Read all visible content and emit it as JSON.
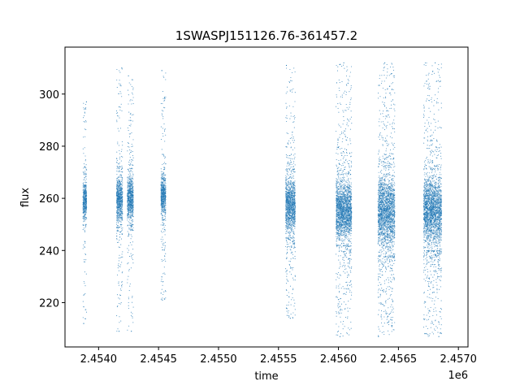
{
  "chart_data": {
    "type": "scatter",
    "title": "1SWASPJ151126.76-361457.2",
    "xlabel": "time",
    "ylabel": "flux",
    "x_offset_label": "1e6",
    "xlim": [
      2453720,
      2457080
    ],
    "ylim": [
      203,
      318
    ],
    "x_ticks": [
      2.454,
      2.4545,
      2.455,
      2.4555,
      2.456,
      2.4565,
      2.457
    ],
    "x_tick_labels": [
      "2.4540",
      "2.4545",
      "2.4550",
      "2.4555",
      "2.4560",
      "2.4565",
      "2.4570"
    ],
    "y_ticks": [
      220,
      240,
      260,
      280,
      300
    ],
    "y_tick_labels": [
      "220",
      "240",
      "260",
      "280",
      "300"
    ],
    "grid": false,
    "marker_color": "#1f77b4",
    "series": [
      {
        "name": "",
        "segments": [
          {
            "x_range": [
              2453870,
              2453900
            ],
            "y_center": 260,
            "y_core": [
              250,
              268
            ],
            "y_extent": [
              212,
              297
            ]
          },
          {
            "x_range": [
              2454150,
              2454200
            ],
            "y_center": 259,
            "y_core": [
              249,
              270
            ],
            "y_extent": [
              209,
              310
            ]
          },
          {
            "x_range": [
              2454240,
              2454290
            ],
            "y_center": 260,
            "y_core": [
              250,
              270
            ],
            "y_extent": [
              209,
              307
            ]
          },
          {
            "x_range": [
              2454520,
              2454560
            ],
            "y_center": 261,
            "y_core": [
              252,
              271
            ],
            "y_extent": [
              221,
              309
            ]
          },
          {
            "x_range": [
              2455560,
              2455640
            ],
            "y_center": 258,
            "y_core": [
              245,
              270
            ],
            "y_extent": [
              214,
              311
            ]
          },
          {
            "x_range": [
              2455980,
              2456110
            ],
            "y_center": 258,
            "y_core": [
              242,
              269
            ],
            "y_extent": [
              207,
              312
            ]
          },
          {
            "x_range": [
              2456330,
              2456470
            ],
            "y_center": 257,
            "y_core": [
              238,
              272
            ],
            "y_extent": [
              207,
              312
            ]
          },
          {
            "x_range": [
              2456710,
              2456860
            ],
            "y_center": 257,
            "y_core": [
              240,
              271
            ],
            "y_extent": [
              207,
              312
            ]
          }
        ]
      }
    ]
  }
}
